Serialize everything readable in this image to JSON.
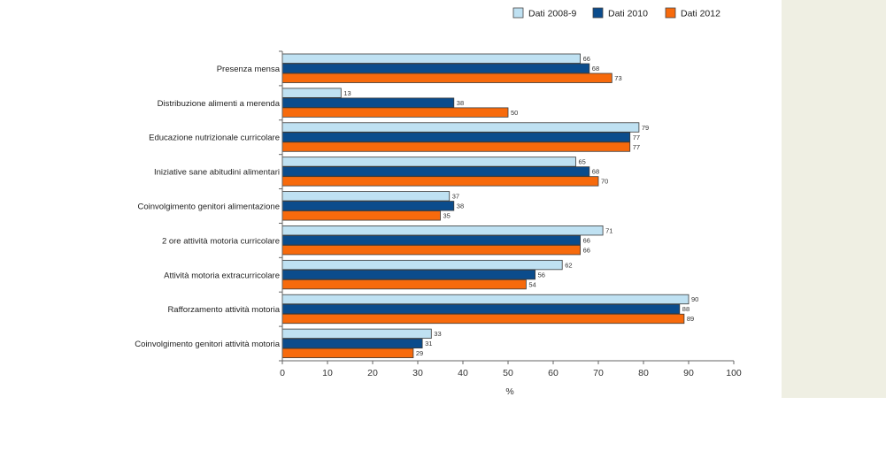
{
  "chart_data": {
    "type": "bar",
    "orientation": "horizontal",
    "title": "",
    "xlabel": "%",
    "ylabel": "",
    "xlim": [
      0,
      100
    ],
    "xticks": [
      0,
      10,
      20,
      30,
      40,
      50,
      60,
      70,
      80,
      90,
      100
    ],
    "grid": false,
    "legend_position": "top-right",
    "categories": [
      "Presenza mensa",
      "Distribuzione alimenti a merenda",
      "Educazione nutrizionale curricolare",
      "Iniziative sane abitudini alimentari",
      "Coinvolgimento genitori alimentazione",
      "2 ore attività motoria curricolare",
      "Attività motoria extracurricolare",
      "Rafforzamento attività motoria",
      "Coinvolgimento genitori attività motoria"
    ],
    "series": [
      {
        "name": "Dati 2008-9",
        "color": "#bfe1f2",
        "values": [
          66,
          13,
          79,
          65,
          37,
          71,
          62,
          90,
          33
        ]
      },
      {
        "name": "Dati 2010",
        "color": "#0b4c8c",
        "values": [
          68,
          38,
          77,
          68,
          38,
          66,
          56,
          88,
          31
        ]
      },
      {
        "name": "Dati 2012",
        "color": "#f76a0c",
        "values": [
          73,
          50,
          77,
          70,
          35,
          66,
          54,
          89,
          29
        ]
      }
    ]
  }
}
